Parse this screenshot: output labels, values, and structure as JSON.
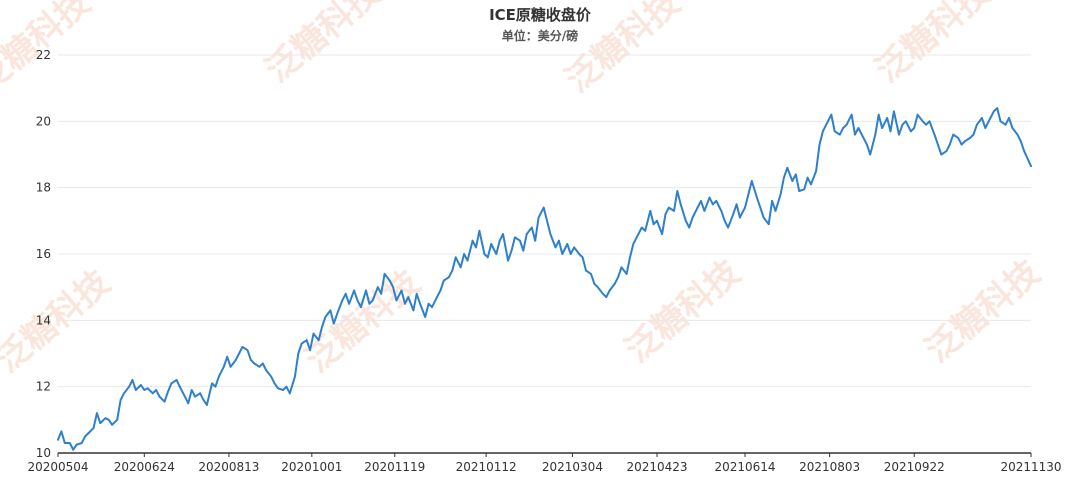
{
  "watermark": {
    "text": "泛糖科技"
  },
  "chart_data": {
    "type": "line",
    "title": "ICE原糖收盘价",
    "subtitle": "单位：美分/磅",
    "xlabel": "",
    "ylabel": "",
    "ylim": [
      10,
      22
    ],
    "yticks": [
      10,
      12,
      14,
      16,
      18,
      20,
      22
    ],
    "x_tick_labels": [
      "20200504",
      "20200624",
      "20200813",
      "20201001",
      "20201119",
      "20210112",
      "20210304",
      "20210423",
      "20210614",
      "20210803",
      "20210922",
      "20211130"
    ],
    "x_start": "2020-05-04",
    "x_end": "2021-11-30",
    "grid": true,
    "legend": "none",
    "series": [
      {
        "color": "#2f80cc",
        "points": [
          [
            "2020-05-04",
            10.4
          ],
          [
            "2020-05-06",
            10.65
          ],
          [
            "2020-05-08",
            10.3
          ],
          [
            "2020-05-11",
            10.3
          ],
          [
            "2020-05-13",
            10.1
          ],
          [
            "2020-05-15",
            10.25
          ],
          [
            "2020-05-18",
            10.3
          ],
          [
            "2020-05-20",
            10.5
          ],
          [
            "2020-05-22",
            10.6
          ],
          [
            "2020-05-25",
            10.75
          ],
          [
            "2020-05-27",
            11.2
          ],
          [
            "2020-05-29",
            10.9
          ],
          [
            "2020-06-01",
            11.05
          ],
          [
            "2020-06-03",
            11.0
          ],
          [
            "2020-06-05",
            10.85
          ],
          [
            "2020-06-08",
            11.0
          ],
          [
            "2020-06-10",
            11.6
          ],
          [
            "2020-06-12",
            11.8
          ],
          [
            "2020-06-15",
            12.0
          ],
          [
            "2020-06-17",
            12.2
          ],
          [
            "2020-06-19",
            11.9
          ],
          [
            "2020-06-22",
            12.05
          ],
          [
            "2020-06-24",
            11.9
          ],
          [
            "2020-06-26",
            11.95
          ],
          [
            "2020-06-29",
            11.8
          ],
          [
            "2020-07-01",
            11.9
          ],
          [
            "2020-07-03",
            11.7
          ],
          [
            "2020-07-06",
            11.55
          ],
          [
            "2020-07-08",
            11.85
          ],
          [
            "2020-07-10",
            12.1
          ],
          [
            "2020-07-13",
            12.2
          ],
          [
            "2020-07-15",
            12.0
          ],
          [
            "2020-07-17",
            11.8
          ],
          [
            "2020-07-20",
            11.5
          ],
          [
            "2020-07-22",
            11.9
          ],
          [
            "2020-07-24",
            11.7
          ],
          [
            "2020-07-27",
            11.8
          ],
          [
            "2020-07-29",
            11.6
          ],
          [
            "2020-07-31",
            11.45
          ],
          [
            "2020-08-03",
            12.1
          ],
          [
            "2020-08-05",
            12.0
          ],
          [
            "2020-08-07",
            12.3
          ],
          [
            "2020-08-10",
            12.6
          ],
          [
            "2020-08-12",
            12.9
          ],
          [
            "2020-08-14",
            12.6
          ],
          [
            "2020-08-17",
            12.8
          ],
          [
            "2020-08-19",
            13.0
          ],
          [
            "2020-08-21",
            13.2
          ],
          [
            "2020-08-24",
            13.1
          ],
          [
            "2020-08-26",
            12.8
          ],
          [
            "2020-08-28",
            12.7
          ],
          [
            "2020-08-31",
            12.6
          ],
          [
            "2020-09-02",
            12.7
          ],
          [
            "2020-09-04",
            12.5
          ],
          [
            "2020-09-07",
            12.3
          ],
          [
            "2020-09-09",
            12.1
          ],
          [
            "2020-09-11",
            11.95
          ],
          [
            "2020-09-14",
            11.9
          ],
          [
            "2020-09-16",
            12.0
          ],
          [
            "2020-09-18",
            11.8
          ],
          [
            "2020-09-21",
            12.3
          ],
          [
            "2020-09-23",
            13.0
          ],
          [
            "2020-09-25",
            13.3
          ],
          [
            "2020-09-28",
            13.4
          ],
          [
            "2020-09-30",
            13.1
          ],
          [
            "2020-10-02",
            13.6
          ],
          [
            "2020-10-05",
            13.4
          ],
          [
            "2020-10-07",
            13.8
          ],
          [
            "2020-10-09",
            14.1
          ],
          [
            "2020-10-12",
            14.3
          ],
          [
            "2020-10-14",
            13.9
          ],
          [
            "2020-10-16",
            14.2
          ],
          [
            "2020-10-19",
            14.6
          ],
          [
            "2020-10-21",
            14.8
          ],
          [
            "2020-10-23",
            14.5
          ],
          [
            "2020-10-26",
            14.9
          ],
          [
            "2020-10-28",
            14.6
          ],
          [
            "2020-10-30",
            14.4
          ],
          [
            "2020-11-02",
            14.9
          ],
          [
            "2020-11-04",
            14.5
          ],
          [
            "2020-11-06",
            14.6
          ],
          [
            "2020-11-09",
            15.0
          ],
          [
            "2020-11-11",
            14.8
          ],
          [
            "2020-11-13",
            15.4
          ],
          [
            "2020-11-16",
            15.2
          ],
          [
            "2020-11-18",
            15.0
          ],
          [
            "2020-11-20",
            14.6
          ],
          [
            "2020-11-23",
            14.9
          ],
          [
            "2020-11-25",
            14.5
          ],
          [
            "2020-11-27",
            14.7
          ],
          [
            "2020-11-30",
            14.3
          ],
          [
            "2020-12-02",
            14.8
          ],
          [
            "2020-12-04",
            14.5
          ],
          [
            "2020-12-07",
            14.1
          ],
          [
            "2020-12-09",
            14.5
          ],
          [
            "2020-12-11",
            14.4
          ],
          [
            "2020-12-14",
            14.7
          ],
          [
            "2020-12-16",
            14.9
          ],
          [
            "2020-12-18",
            15.2
          ],
          [
            "2020-12-21",
            15.3
          ],
          [
            "2020-12-23",
            15.5
          ],
          [
            "2020-12-25",
            15.9
          ],
          [
            "2020-12-28",
            15.6
          ],
          [
            "2020-12-30",
            16.0
          ],
          [
            "2021-01-01",
            15.8
          ],
          [
            "2021-01-04",
            16.4
          ],
          [
            "2021-01-06",
            16.2
          ],
          [
            "2021-01-08",
            16.7
          ],
          [
            "2021-01-11",
            16.0
          ],
          [
            "2021-01-13",
            15.9
          ],
          [
            "2021-01-15",
            16.3
          ],
          [
            "2021-01-18",
            16.0
          ],
          [
            "2021-01-20",
            16.4
          ],
          [
            "2021-01-22",
            16.6
          ],
          [
            "2021-01-25",
            15.8
          ],
          [
            "2021-01-27",
            16.1
          ],
          [
            "2021-01-29",
            16.5
          ],
          [
            "2021-02-01",
            16.4
          ],
          [
            "2021-02-03",
            16.1
          ],
          [
            "2021-02-05",
            16.6
          ],
          [
            "2021-02-08",
            16.8
          ],
          [
            "2021-02-10",
            16.4
          ],
          [
            "2021-02-12",
            17.1
          ],
          [
            "2021-02-15",
            17.4
          ],
          [
            "2021-02-17",
            17.0
          ],
          [
            "2021-02-19",
            16.6
          ],
          [
            "2021-02-22",
            16.2
          ],
          [
            "2021-02-24",
            16.4
          ],
          [
            "2021-02-26",
            16.0
          ],
          [
            "2021-03-01",
            16.3
          ],
          [
            "2021-03-03",
            16.0
          ],
          [
            "2021-03-05",
            16.2
          ],
          [
            "2021-03-08",
            16.0
          ],
          [
            "2021-03-10",
            15.9
          ],
          [
            "2021-03-12",
            15.5
          ],
          [
            "2021-03-15",
            15.4
          ],
          [
            "2021-03-17",
            15.1
          ],
          [
            "2021-03-19",
            15.0
          ],
          [
            "2021-03-22",
            14.8
          ],
          [
            "2021-03-24",
            14.7
          ],
          [
            "2021-03-26",
            14.9
          ],
          [
            "2021-03-29",
            15.1
          ],
          [
            "2021-03-31",
            15.3
          ],
          [
            "2021-04-02",
            15.6
          ],
          [
            "2021-04-05",
            15.4
          ],
          [
            "2021-04-07",
            15.9
          ],
          [
            "2021-04-09",
            16.3
          ],
          [
            "2021-04-12",
            16.6
          ],
          [
            "2021-04-14",
            16.8
          ],
          [
            "2021-04-16",
            16.7
          ],
          [
            "2021-04-19",
            17.3
          ],
          [
            "2021-04-21",
            16.9
          ],
          [
            "2021-04-23",
            17.0
          ],
          [
            "2021-04-26",
            16.6
          ],
          [
            "2021-04-28",
            17.2
          ],
          [
            "2021-04-30",
            17.4
          ],
          [
            "2021-05-03",
            17.3
          ],
          [
            "2021-05-05",
            17.9
          ],
          [
            "2021-05-07",
            17.5
          ],
          [
            "2021-05-10",
            17.0
          ],
          [
            "2021-05-12",
            16.8
          ],
          [
            "2021-05-14",
            17.1
          ],
          [
            "2021-05-17",
            17.4
          ],
          [
            "2021-05-19",
            17.6
          ],
          [
            "2021-05-21",
            17.3
          ],
          [
            "2021-05-24",
            17.7
          ],
          [
            "2021-05-26",
            17.5
          ],
          [
            "2021-05-28",
            17.6
          ],
          [
            "2021-05-31",
            17.3
          ],
          [
            "2021-06-02",
            17.0
          ],
          [
            "2021-06-04",
            16.8
          ],
          [
            "2021-06-07",
            17.2
          ],
          [
            "2021-06-09",
            17.5
          ],
          [
            "2021-06-11",
            17.1
          ],
          [
            "2021-06-14",
            17.4
          ],
          [
            "2021-06-16",
            17.8
          ],
          [
            "2021-06-18",
            18.2
          ],
          [
            "2021-06-21",
            17.7
          ],
          [
            "2021-06-23",
            17.4
          ],
          [
            "2021-06-25",
            17.1
          ],
          [
            "2021-06-28",
            16.9
          ],
          [
            "2021-06-30",
            17.6
          ],
          [
            "2021-07-02",
            17.3
          ],
          [
            "2021-07-05",
            17.8
          ],
          [
            "2021-07-07",
            18.3
          ],
          [
            "2021-07-09",
            18.6
          ],
          [
            "2021-07-12",
            18.2
          ],
          [
            "2021-07-14",
            18.4
          ],
          [
            "2021-07-16",
            17.9
          ],
          [
            "2021-07-19",
            17.95
          ],
          [
            "2021-07-21",
            18.3
          ],
          [
            "2021-07-23",
            18.1
          ],
          [
            "2021-07-26",
            18.5
          ],
          [
            "2021-07-28",
            19.3
          ],
          [
            "2021-07-30",
            19.7
          ],
          [
            "2021-08-02",
            20.0
          ],
          [
            "2021-08-04",
            20.2
          ],
          [
            "2021-08-06",
            19.7
          ],
          [
            "2021-08-09",
            19.6
          ],
          [
            "2021-08-11",
            19.8
          ],
          [
            "2021-08-13",
            19.9
          ],
          [
            "2021-08-16",
            20.2
          ],
          [
            "2021-08-18",
            19.6
          ],
          [
            "2021-08-20",
            19.8
          ],
          [
            "2021-08-23",
            19.5
          ],
          [
            "2021-08-25",
            19.3
          ],
          [
            "2021-08-27",
            19.0
          ],
          [
            "2021-08-30",
            19.6
          ],
          [
            "2021-09-01",
            20.2
          ],
          [
            "2021-09-03",
            19.8
          ],
          [
            "2021-09-06",
            20.1
          ],
          [
            "2021-09-08",
            19.7
          ],
          [
            "2021-09-10",
            20.3
          ],
          [
            "2021-09-13",
            19.6
          ],
          [
            "2021-09-15",
            19.9
          ],
          [
            "2021-09-17",
            20.0
          ],
          [
            "2021-09-20",
            19.7
          ],
          [
            "2021-09-22",
            19.8
          ],
          [
            "2021-09-24",
            20.2
          ],
          [
            "2021-09-27",
            20.0
          ],
          [
            "2021-09-29",
            19.9
          ],
          [
            "2021-10-01",
            20.0
          ],
          [
            "2021-10-04",
            19.6
          ],
          [
            "2021-10-06",
            19.3
          ],
          [
            "2021-10-08",
            19.0
          ],
          [
            "2021-10-11",
            19.1
          ],
          [
            "2021-10-13",
            19.3
          ],
          [
            "2021-10-15",
            19.6
          ],
          [
            "2021-10-18",
            19.5
          ],
          [
            "2021-10-20",
            19.3
          ],
          [
            "2021-10-22",
            19.4
          ],
          [
            "2021-10-25",
            19.5
          ],
          [
            "2021-10-27",
            19.6
          ],
          [
            "2021-10-29",
            19.9
          ],
          [
            "2021-11-01",
            20.1
          ],
          [
            "2021-11-03",
            19.8
          ],
          [
            "2021-11-05",
            20.0
          ],
          [
            "2021-11-08",
            20.3
          ],
          [
            "2021-11-10",
            20.4
          ],
          [
            "2021-11-12",
            20.0
          ],
          [
            "2021-11-15",
            19.9
          ],
          [
            "2021-11-17",
            20.1
          ],
          [
            "2021-11-19",
            19.8
          ],
          [
            "2021-11-22",
            19.6
          ],
          [
            "2021-11-24",
            19.4
          ],
          [
            "2021-11-26",
            19.1
          ],
          [
            "2021-11-30",
            18.65
          ]
        ]
      }
    ]
  }
}
